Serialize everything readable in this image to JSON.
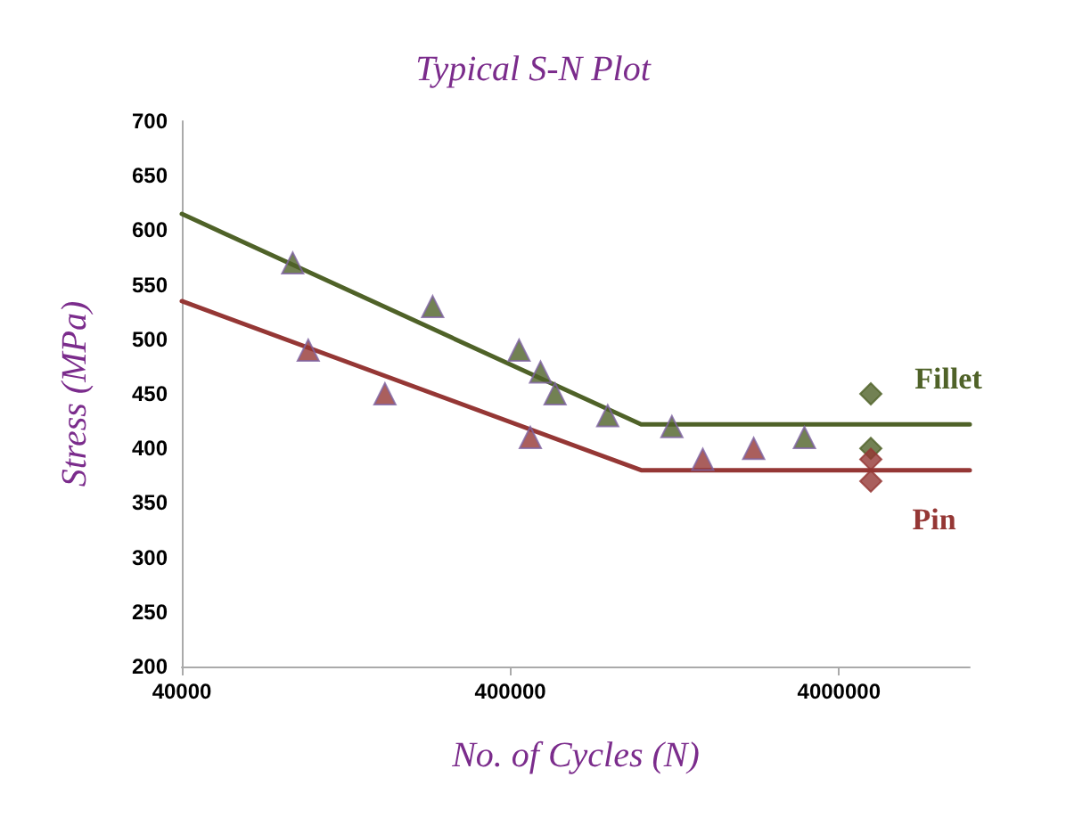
{
  "chart_data": {
    "type": "line",
    "title": "Typical S-N Plot",
    "xlabel": "No. of Cycles (N)",
    "ylabel": "Stress (MPa)",
    "log": "x",
    "xlim": [
      40000,
      10000000
    ],
    "xticks": [
      40000,
      400000,
      4000000
    ],
    "ylim": [
      200,
      700
    ],
    "yticks": [
      200,
      250,
      300,
      350,
      400,
      450,
      500,
      550,
      600,
      650,
      700
    ],
    "grid": false,
    "legend": false,
    "series": [
      {
        "name": "Fillet",
        "color": "#4f6228",
        "marker": "none",
        "x": [
          40000,
          1000000,
          10000000
        ],
        "values": [
          615,
          422,
          422
        ]
      },
      {
        "name": "Pin",
        "color": "#953735",
        "marker": "none",
        "x": [
          40000,
          1000000,
          10000000
        ],
        "values": [
          535,
          380,
          380
        ]
      },
      {
        "type": "scatter",
        "color": "#4f6228",
        "marker": "triangle",
        "x": [
          87000,
          232000,
          425000,
          494000,
          547000,
          791000,
          1240000,
          3140000
        ],
        "values": [
          570,
          530,
          490,
          470,
          450,
          430,
          420,
          410
        ]
      },
      {
        "type": "scatter",
        "color": "#953735",
        "marker": "triangle",
        "x": [
          97000,
          166000,
          460000,
          1540000,
          2200000
        ],
        "values": [
          490,
          450,
          410,
          390,
          400
        ]
      },
      {
        "type": "scatter",
        "color": "#4f6228",
        "marker": "diamond",
        "x": [
          5000000,
          5000000
        ],
        "values": [
          450,
          400
        ]
      },
      {
        "type": "scatter",
        "color": "#953735",
        "marker": "diamond",
        "x": [
          5000000,
          5000000
        ],
        "values": [
          390,
          370
        ]
      }
    ]
  }
}
